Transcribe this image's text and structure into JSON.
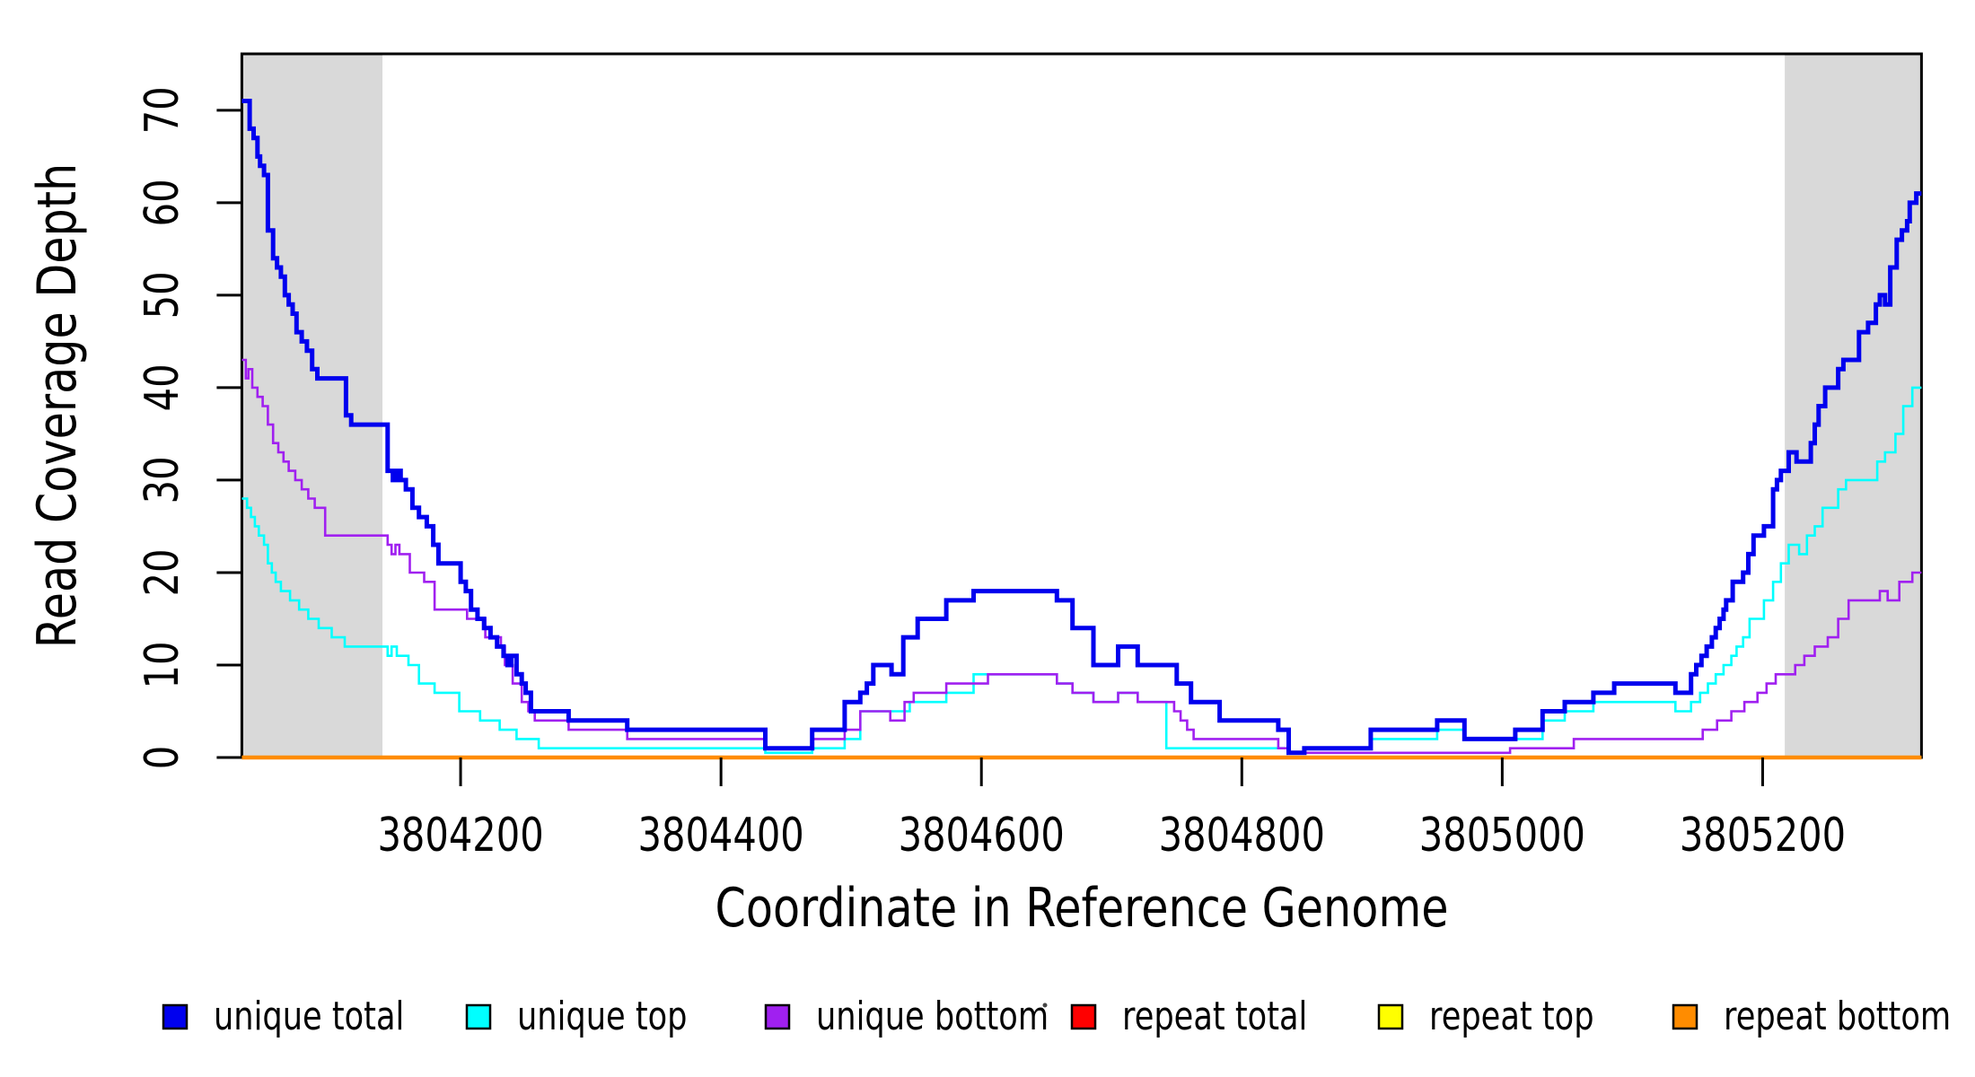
{
  "figure": {
    "xlabel": "Coordinate in Reference Genome",
    "ylabel": "Read Coverage Depth"
  },
  "legend": [
    {
      "label": "unique total",
      "color": "#0000EE"
    },
    {
      "label": "unique top",
      "color": "#00FFFF"
    },
    {
      "label": "unique bottom",
      "color": "#A020F0"
    },
    {
      "label": "repeat total",
      "color": "#FF0000"
    },
    {
      "label": "repeat top",
      "color": "#FFFF00"
    },
    {
      "label": "repeat bottom",
      "color": "#FF8C00"
    }
  ],
  "chart_data": {
    "type": "step-line",
    "title": "",
    "xlabel": "Coordinate in Reference Genome",
    "ylabel": "Read Coverage Depth",
    "xlim": [
      3804032,
      3805322
    ],
    "ylim": [
      0,
      76.1
    ],
    "x_ticks": [
      3804200,
      3804400,
      3804600,
      3804800,
      3805000,
      3805200
    ],
    "y_ticks": [
      0,
      10,
      20,
      30,
      40,
      50,
      60,
      70
    ],
    "grid": false,
    "legend_position": "bottom",
    "shade_color": "#D9D9D9",
    "shaded_regions": [
      {
        "x0": 3804032,
        "x1": 3804140
      },
      {
        "x0": 3805217,
        "x1": 3805322
      }
    ],
    "series": [
      {
        "name": "unique total",
        "color": "#0000EE",
        "width": 5,
        "points": [
          [
            3804032,
            71
          ],
          [
            3804038,
            68
          ],
          [
            3804041,
            67
          ],
          [
            3804044,
            65
          ],
          [
            3804046,
            64
          ],
          [
            3804049,
            63
          ],
          [
            3804052,
            57
          ],
          [
            3804056,
            54
          ],
          [
            3804059,
            53
          ],
          [
            3804062,
            52
          ],
          [
            3804065,
            50
          ],
          [
            3804068,
            49
          ],
          [
            3804071,
            48
          ],
          [
            3804074,
            46
          ],
          [
            3804078,
            45
          ],
          [
            3804082,
            44
          ],
          [
            3804086,
            42
          ],
          [
            3804090,
            41
          ],
          [
            3804112,
            37
          ],
          [
            3804116,
            36
          ],
          [
            3804144,
            31
          ],
          [
            3804148,
            30
          ],
          [
            3804151,
            31
          ],
          [
            3804154,
            30
          ],
          [
            3804158,
            29
          ],
          [
            3804163,
            27
          ],
          [
            3804168,
            26
          ],
          [
            3804174,
            25
          ],
          [
            3804179,
            23
          ],
          [
            3804183,
            21
          ],
          [
            3804200,
            19
          ],
          [
            3804204,
            18
          ],
          [
            3804208,
            16
          ],
          [
            3804213,
            15
          ],
          [
            3804218,
            14
          ],
          [
            3804223,
            13
          ],
          [
            3804228,
            12
          ],
          [
            3804233,
            11
          ],
          [
            3804236,
            10
          ],
          [
            3804239,
            11
          ],
          [
            3804243,
            9
          ],
          [
            3804247,
            8
          ],
          [
            3804250,
            7
          ],
          [
            3804254,
            5
          ],
          [
            3804283,
            4
          ],
          [
            3804328,
            3
          ],
          [
            3804434,
            1
          ],
          [
            3804470,
            3
          ],
          [
            3804495,
            6
          ],
          [
            3804507,
            7
          ],
          [
            3804512,
            8
          ],
          [
            3804517,
            10
          ],
          [
            3804531,
            9
          ],
          [
            3804540,
            13
          ],
          [
            3804551,
            15
          ],
          [
            3804573,
            17
          ],
          [
            3804594,
            18
          ],
          [
            3804658,
            17
          ],
          [
            3804670,
            14
          ],
          [
            3804686,
            10
          ],
          [
            3804705,
            12
          ],
          [
            3804720,
            10
          ],
          [
            3804750,
            8
          ],
          [
            3804761,
            6
          ],
          [
            3804783,
            4
          ],
          [
            3804828,
            3
          ],
          [
            3804836,
            0.5
          ],
          [
            3804848,
            1
          ],
          [
            3804899,
            3
          ],
          [
            3804950,
            4
          ],
          [
            3804971,
            2
          ],
          [
            3805010,
            3
          ],
          [
            3805031,
            5
          ],
          [
            3805048,
            6
          ],
          [
            3805070,
            7
          ],
          [
            3805086,
            8
          ],
          [
            3805133,
            7
          ],
          [
            3805145,
            9
          ],
          [
            3805149,
            10
          ],
          [
            3805153,
            11
          ],
          [
            3805157,
            12
          ],
          [
            3805161,
            13
          ],
          [
            3805164,
            14
          ],
          [
            3805167,
            15
          ],
          [
            3805170,
            16
          ],
          [
            3805172,
            17
          ],
          [
            3805177,
            19
          ],
          [
            3805185,
            20
          ],
          [
            3805189,
            22
          ],
          [
            3805193,
            24
          ],
          [
            3805201,
            25
          ],
          [
            3805208,
            29
          ],
          [
            3805211,
            30
          ],
          [
            3805214,
            31
          ],
          [
            3805220,
            33
          ],
          [
            3805226,
            32
          ],
          [
            3805237,
            34
          ],
          [
            3805240,
            36
          ],
          [
            3805243,
            38
          ],
          [
            3805248,
            40
          ],
          [
            3805258,
            42
          ],
          [
            3805262,
            43
          ],
          [
            3805274,
            46
          ],
          [
            3805281,
            47
          ],
          [
            3805287,
            49
          ],
          [
            3805290,
            50
          ],
          [
            3805294,
            49
          ],
          [
            3805298,
            53
          ],
          [
            3805303,
            56
          ],
          [
            3805307,
            57
          ],
          [
            3805311,
            58
          ],
          [
            3805313,
            60
          ],
          [
            3805318,
            61
          ]
        ]
      },
      {
        "name": "unique top",
        "color": "#00FFFF",
        "width": 2.6,
        "points": [
          [
            3804032,
            28
          ],
          [
            3804036,
            27
          ],
          [
            3804039,
            26
          ],
          [
            3804042,
            25
          ],
          [
            3804045,
            24
          ],
          [
            3804049,
            23
          ],
          [
            3804052,
            21
          ],
          [
            3804055,
            20
          ],
          [
            3804058,
            19
          ],
          [
            3804062,
            18
          ],
          [
            3804069,
            17
          ],
          [
            3804076,
            16
          ],
          [
            3804083,
            15
          ],
          [
            3804091,
            14
          ],
          [
            3804101,
            13
          ],
          [
            3804111,
            12
          ],
          [
            3804144,
            11
          ],
          [
            3804147,
            12
          ],
          [
            3804151,
            11
          ],
          [
            3804160,
            10
          ],
          [
            3804168,
            8
          ],
          [
            3804180,
            7
          ],
          [
            3804199,
            5
          ],
          [
            3804215,
            4
          ],
          [
            3804230,
            3
          ],
          [
            3804243,
            2
          ],
          [
            3804260,
            1
          ],
          [
            3804434,
            0.5
          ],
          [
            3804470,
            1
          ],
          [
            3804495,
            2
          ],
          [
            3804507,
            5
          ],
          [
            3804545,
            6
          ],
          [
            3804573,
            7
          ],
          [
            3804594,
            9
          ],
          [
            3804658,
            8
          ],
          [
            3804670,
            7
          ],
          [
            3804686,
            6
          ],
          [
            3804705,
            7
          ],
          [
            3804720,
            6
          ],
          [
            3804742,
            1
          ],
          [
            3804836,
            0.5
          ],
          [
            3804848,
            1
          ],
          [
            3804899,
            2
          ],
          [
            3804950,
            3
          ],
          [
            3804971,
            2
          ],
          [
            3805031,
            4
          ],
          [
            3805048,
            5
          ],
          [
            3805070,
            6
          ],
          [
            3805133,
            5
          ],
          [
            3805145,
            6
          ],
          [
            3805152,
            7
          ],
          [
            3805158,
            8
          ],
          [
            3805164,
            9
          ],
          [
            3805170,
            10
          ],
          [
            3805176,
            11
          ],
          [
            3805180,
            12
          ],
          [
            3805185,
            13
          ],
          [
            3805190,
            15
          ],
          [
            3805201,
            17
          ],
          [
            3805208,
            19
          ],
          [
            3805214,
            21
          ],
          [
            3805220,
            23
          ],
          [
            3805228,
            22
          ],
          [
            3805234,
            24
          ],
          [
            3805240,
            25
          ],
          [
            3805246,
            27
          ],
          [
            3805258,
            29
          ],
          [
            3805264,
            30
          ],
          [
            3805288,
            32
          ],
          [
            3805294,
            33
          ],
          [
            3805302,
            35
          ],
          [
            3805308,
            38
          ],
          [
            3805315,
            40
          ]
        ]
      },
      {
        "name": "unique bottom",
        "color": "#A020F0",
        "width": 2.6,
        "points": [
          [
            3804032,
            43
          ],
          [
            3804035,
            41
          ],
          [
            3804037,
            42
          ],
          [
            3804040,
            40
          ],
          [
            3804044,
            39
          ],
          [
            3804048,
            38
          ],
          [
            3804052,
            36
          ],
          [
            3804056,
            34
          ],
          [
            3804060,
            33
          ],
          [
            3804064,
            32
          ],
          [
            3804068,
            31
          ],
          [
            3804073,
            30
          ],
          [
            3804078,
            29
          ],
          [
            3804083,
            28
          ],
          [
            3804088,
            27
          ],
          [
            3804096,
            24
          ],
          [
            3804144,
            23
          ],
          [
            3804147,
            22
          ],
          [
            3804150,
            23
          ],
          [
            3804153,
            22
          ],
          [
            3804161,
            20
          ],
          [
            3804172,
            19
          ],
          [
            3804180,
            16
          ],
          [
            3804205,
            15
          ],
          [
            3804219,
            13
          ],
          [
            3804231,
            12
          ],
          [
            3804234,
            10
          ],
          [
            3804240,
            8
          ],
          [
            3804247,
            6
          ],
          [
            3804252,
            5
          ],
          [
            3804257,
            4
          ],
          [
            3804283,
            3
          ],
          [
            3804328,
            2
          ],
          [
            3804434,
            1
          ],
          [
            3804470,
            2
          ],
          [
            3804495,
            3
          ],
          [
            3804507,
            5
          ],
          [
            3804530,
            4
          ],
          [
            3804541,
            6
          ],
          [
            3804548,
            7
          ],
          [
            3804573,
            8
          ],
          [
            3804605,
            9
          ],
          [
            3804658,
            8
          ],
          [
            3804670,
            7
          ],
          [
            3804686,
            6
          ],
          [
            3804705,
            7
          ],
          [
            3804720,
            6
          ],
          [
            3804748,
            5
          ],
          [
            3804753,
            4
          ],
          [
            3804758,
            3
          ],
          [
            3804763,
            2
          ],
          [
            3804828,
            1
          ],
          [
            3804836,
            0.5
          ],
          [
            3805006,
            1
          ],
          [
            3805055,
            2
          ],
          [
            3805154,
            3
          ],
          [
            3805165,
            4
          ],
          [
            3805176,
            5
          ],
          [
            3805186,
            6
          ],
          [
            3805196,
            7
          ],
          [
            3805203,
            8
          ],
          [
            3805210,
            9
          ],
          [
            3805225,
            10
          ],
          [
            3805232,
            11
          ],
          [
            3805240,
            12
          ],
          [
            3805250,
            13
          ],
          [
            3805258,
            15
          ],
          [
            3805266,
            17
          ],
          [
            3805290,
            18
          ],
          [
            3805296,
            17
          ],
          [
            3805305,
            19
          ],
          [
            3805315,
            20
          ]
        ]
      },
      {
        "name": "repeat total",
        "color": "#FF0000",
        "width": 2.6,
        "points": [
          [
            3804032,
            0
          ]
        ]
      },
      {
        "name": "repeat top",
        "color": "#FFFF00",
        "width": 2.6,
        "points": [
          [
            3804032,
            0
          ]
        ]
      },
      {
        "name": "repeat bottom",
        "color": "#FF8C00",
        "width": 4.5,
        "points": [
          [
            3804032,
            0
          ]
        ]
      }
    ]
  }
}
